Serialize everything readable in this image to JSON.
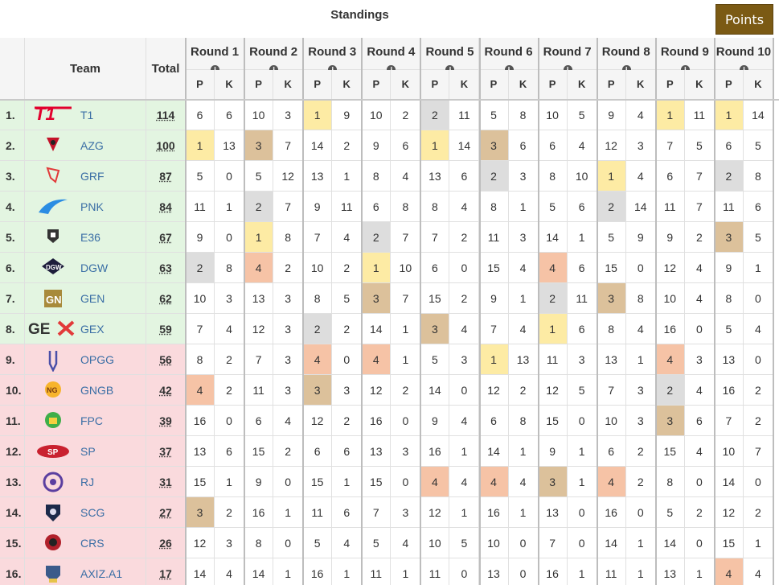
{
  "title": "Standings",
  "points_button": "Points",
  "headers": {
    "team": "Team",
    "total": "Total",
    "p": "P",
    "k": "K",
    "info": "i"
  },
  "rounds": [
    "Round 1",
    "Round 2",
    "Round 3",
    "Round 4",
    "Round 5",
    "Round 6",
    "Round 7",
    "Round 8",
    "Round 9",
    "Round 10"
  ],
  "colors": {
    "green_row": "#e3f5e1",
    "red_row": "#fadadd",
    "gold": "#fdeba4",
    "silver": "#dddddd",
    "bronze": "#dcc19b",
    "fourth": "#f6c3a6",
    "team_link": "#3a6ea5",
    "points_button": "#7b5a14"
  },
  "teams": [
    {
      "rank": "1.",
      "name": "T1",
      "total": "114",
      "logo": "t1-logo",
      "row": "green",
      "r": [
        [
          "6",
          "6"
        ],
        [
          "10",
          "3"
        ],
        [
          "1",
          "9"
        ],
        [
          "10",
          "2"
        ],
        [
          "2",
          "11"
        ],
        [
          "5",
          "8"
        ],
        [
          "10",
          "5"
        ],
        [
          "9",
          "4"
        ],
        [
          "1",
          "11"
        ],
        [
          "1",
          "14"
        ]
      ]
    },
    {
      "rank": "2.",
      "name": "AZG",
      "total": "100",
      "logo": "azg-logo",
      "row": "green",
      "r": [
        [
          "1",
          "13"
        ],
        [
          "3",
          "7"
        ],
        [
          "14",
          "2"
        ],
        [
          "9",
          "6"
        ],
        [
          "1",
          "14"
        ],
        [
          "3",
          "6"
        ],
        [
          "6",
          "4"
        ],
        [
          "12",
          "3"
        ],
        [
          "7",
          "5"
        ],
        [
          "6",
          "5"
        ]
      ]
    },
    {
      "rank": "3.",
      "name": "GRF",
      "total": "87",
      "logo": "grf-logo",
      "row": "green",
      "r": [
        [
          "5",
          "0"
        ],
        [
          "5",
          "12"
        ],
        [
          "13",
          "1"
        ],
        [
          "8",
          "4"
        ],
        [
          "13",
          "6"
        ],
        [
          "2",
          "3"
        ],
        [
          "8",
          "10"
        ],
        [
          "1",
          "4"
        ],
        [
          "6",
          "7"
        ],
        [
          "2",
          "8"
        ]
      ]
    },
    {
      "rank": "4.",
      "name": "PNK",
      "total": "84",
      "logo": "pnk-logo",
      "row": "green",
      "r": [
        [
          "11",
          "1"
        ],
        [
          "2",
          "7"
        ],
        [
          "9",
          "11"
        ],
        [
          "6",
          "8"
        ],
        [
          "8",
          "4"
        ],
        [
          "8",
          "1"
        ],
        [
          "5",
          "6"
        ],
        [
          "2",
          "14"
        ],
        [
          "11",
          "7"
        ],
        [
          "11",
          "6"
        ]
      ]
    },
    {
      "rank": "5.",
      "name": "E36",
      "total": "67",
      "logo": "e36-logo",
      "row": "green",
      "r": [
        [
          "9",
          "0"
        ],
        [
          "1",
          "8"
        ],
        [
          "7",
          "4"
        ],
        [
          "2",
          "7"
        ],
        [
          "7",
          "2"
        ],
        [
          "11",
          "3"
        ],
        [
          "14",
          "1"
        ],
        [
          "5",
          "9"
        ],
        [
          "9",
          "2"
        ],
        [
          "3",
          "5"
        ]
      ]
    },
    {
      "rank": "6.",
      "name": "DGW",
      "total": "63",
      "logo": "dgw-logo",
      "row": "green",
      "r": [
        [
          "2",
          "8"
        ],
        [
          "4",
          "2"
        ],
        [
          "10",
          "2"
        ],
        [
          "1",
          "10"
        ],
        [
          "6",
          "0"
        ],
        [
          "15",
          "4"
        ],
        [
          "4",
          "6"
        ],
        [
          "15",
          "0"
        ],
        [
          "12",
          "4"
        ],
        [
          "9",
          "1"
        ]
      ]
    },
    {
      "rank": "7.",
      "name": "GEN",
      "total": "62",
      "logo": "gen-logo",
      "row": "green",
      "r": [
        [
          "10",
          "3"
        ],
        [
          "13",
          "3"
        ],
        [
          "8",
          "5"
        ],
        [
          "3",
          "7"
        ],
        [
          "15",
          "2"
        ],
        [
          "9",
          "1"
        ],
        [
          "2",
          "11"
        ],
        [
          "3",
          "8"
        ],
        [
          "10",
          "4"
        ],
        [
          "8",
          "0"
        ]
      ]
    },
    {
      "rank": "8.",
      "name": "GEX",
      "total": "59",
      "logo": "gex-logo",
      "row": "green",
      "r": [
        [
          "7",
          "4"
        ],
        [
          "12",
          "3"
        ],
        [
          "2",
          "2"
        ],
        [
          "14",
          "1"
        ],
        [
          "3",
          "4"
        ],
        [
          "7",
          "4"
        ],
        [
          "1",
          "6"
        ],
        [
          "8",
          "4"
        ],
        [
          "16",
          "0"
        ],
        [
          "5",
          "4"
        ]
      ]
    },
    {
      "rank": "9.",
      "name": "OPGG",
      "total": "56",
      "logo": "opgg-logo",
      "row": "red",
      "r": [
        [
          "8",
          "2"
        ],
        [
          "7",
          "3"
        ],
        [
          "4",
          "0"
        ],
        [
          "4",
          "1"
        ],
        [
          "5",
          "3"
        ],
        [
          "1",
          "13"
        ],
        [
          "11",
          "3"
        ],
        [
          "13",
          "1"
        ],
        [
          "4",
          "3"
        ],
        [
          "13",
          "0"
        ]
      ]
    },
    {
      "rank": "10.",
      "name": "GNGB",
      "total": "42",
      "logo": "gngb-logo",
      "row": "red",
      "r": [
        [
          "4",
          "2"
        ],
        [
          "11",
          "3"
        ],
        [
          "3",
          "3"
        ],
        [
          "12",
          "2"
        ],
        [
          "14",
          "0"
        ],
        [
          "12",
          "2"
        ],
        [
          "12",
          "5"
        ],
        [
          "7",
          "3"
        ],
        [
          "2",
          "4"
        ],
        [
          "16",
          "2"
        ]
      ]
    },
    {
      "rank": "11.",
      "name": "FPC",
      "total": "39",
      "logo": "fpc-logo",
      "row": "red",
      "r": [
        [
          "16",
          "0"
        ],
        [
          "6",
          "4"
        ],
        [
          "12",
          "2"
        ],
        [
          "16",
          "0"
        ],
        [
          "9",
          "4"
        ],
        [
          "6",
          "8"
        ],
        [
          "15",
          "0"
        ],
        [
          "10",
          "3"
        ],
        [
          "3",
          "6"
        ],
        [
          "7",
          "2"
        ]
      ]
    },
    {
      "rank": "12.",
      "name": "SP",
      "total": "37",
      "logo": "sp-logo",
      "row": "red",
      "r": [
        [
          "13",
          "6"
        ],
        [
          "15",
          "2"
        ],
        [
          "6",
          "6"
        ],
        [
          "13",
          "3"
        ],
        [
          "16",
          "1"
        ],
        [
          "14",
          "1"
        ],
        [
          "9",
          "1"
        ],
        [
          "6",
          "2"
        ],
        [
          "15",
          "4"
        ],
        [
          "10",
          "7"
        ]
      ]
    },
    {
      "rank": "13.",
      "name": "RJ",
      "total": "31",
      "logo": "rj-logo",
      "row": "red",
      "r": [
        [
          "15",
          "1"
        ],
        [
          "9",
          "0"
        ],
        [
          "15",
          "1"
        ],
        [
          "15",
          "0"
        ],
        [
          "4",
          "4"
        ],
        [
          "4",
          "4"
        ],
        [
          "3",
          "1"
        ],
        [
          "4",
          "2"
        ],
        [
          "8",
          "0"
        ],
        [
          "14",
          "0"
        ]
      ]
    },
    {
      "rank": "14.",
      "name": "SCG",
      "total": "27",
      "logo": "scg-logo",
      "row": "red",
      "r": [
        [
          "3",
          "2"
        ],
        [
          "16",
          "1"
        ],
        [
          "11",
          "6"
        ],
        [
          "7",
          "3"
        ],
        [
          "12",
          "1"
        ],
        [
          "16",
          "1"
        ],
        [
          "13",
          "0"
        ],
        [
          "16",
          "0"
        ],
        [
          "5",
          "2"
        ],
        [
          "12",
          "2"
        ]
      ]
    },
    {
      "rank": "15.",
      "name": "CRS",
      "total": "26",
      "logo": "crs-logo",
      "row": "red",
      "r": [
        [
          "12",
          "3"
        ],
        [
          "8",
          "0"
        ],
        [
          "5",
          "4"
        ],
        [
          "5",
          "4"
        ],
        [
          "10",
          "5"
        ],
        [
          "10",
          "0"
        ],
        [
          "7",
          "0"
        ],
        [
          "14",
          "1"
        ],
        [
          "14",
          "0"
        ],
        [
          "15",
          "1"
        ]
      ]
    },
    {
      "rank": "16.",
      "name": "AXIZ.A1",
      "total": "17",
      "logo": "axiz-logo",
      "row": "red",
      "r": [
        [
          "14",
          "4"
        ],
        [
          "14",
          "1"
        ],
        [
          "16",
          "1"
        ],
        [
          "11",
          "1"
        ],
        [
          "11",
          "0"
        ],
        [
          "13",
          "0"
        ],
        [
          "16",
          "1"
        ],
        [
          "11",
          "1"
        ],
        [
          "13",
          "1"
        ],
        [
          "4",
          "4"
        ]
      ]
    }
  ]
}
